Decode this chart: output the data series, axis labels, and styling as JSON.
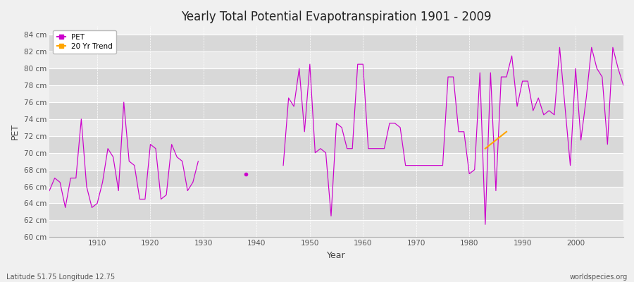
{
  "title": "Yearly Total Potential Evapotranspiration 1901 - 2009",
  "xlabel": "Year",
  "ylabel": "PET",
  "subtitle_left": "Latitude 51.75 Longitude 12.75",
  "subtitle_right": "worldspecies.org",
  "pet_color": "#cc00cc",
  "trend_color": "#FFA500",
  "bg_color": "#f0f0f0",
  "plot_bg_color": "#f0f0f0",
  "ylim": [
    60,
    85
  ],
  "ytick_labels": [
    "60 cm",
    "62 cm",
    "64 cm",
    "66 cm",
    "68 cm",
    "70 cm",
    "72 cm",
    "74 cm",
    "76 cm",
    "78 cm",
    "80 cm",
    "82 cm",
    "84 cm"
  ],
  "ytick_values": [
    60,
    62,
    64,
    66,
    68,
    70,
    72,
    74,
    76,
    78,
    80,
    82,
    84
  ],
  "years": [
    1901,
    1902,
    1903,
    1904,
    1905,
    1906,
    1907,
    1908,
    1909,
    1910,
    1911,
    1912,
    1913,
    1914,
    1915,
    1916,
    1917,
    1918,
    1919,
    1920,
    1921,
    1922,
    1923,
    1924,
    1925,
    1926,
    1927,
    1928,
    1929,
    1930,
    1931,
    1932,
    1933,
    1934,
    1935,
    1936,
    1937,
    1938,
    1939,
    1940,
    1941,
    1942,
    1943,
    1944,
    1945,
    1946,
    1947,
    1948,
    1949,
    1950,
    1951,
    1952,
    1953,
    1954,
    1955,
    1956,
    1957,
    1958,
    1959,
    1960,
    1961,
    1962,
    1963,
    1964,
    1965,
    1966,
    1967,
    1968,
    1969,
    1970,
    1971,
    1972,
    1973,
    1974,
    1975,
    1976,
    1977,
    1978,
    1979,
    1980,
    1981,
    1982,
    1983,
    1984,
    1985,
    1986,
    1987,
    1988,
    1989,
    1990,
    1991,
    1992,
    1993,
    1994,
    1995,
    1996,
    1997,
    1998,
    1999,
    2000,
    2001,
    2002,
    2003,
    2004,
    2005,
    2006,
    2007,
    2008,
    2009
  ],
  "pet_values": [
    65.5,
    67.0,
    66.5,
    63.5,
    67.0,
    67.0,
    74.0,
    66.0,
    63.5,
    64.0,
    66.5,
    70.5,
    69.5,
    65.5,
    76.0,
    69.0,
    68.5,
    64.5,
    64.5,
    71.0,
    70.5,
    64.5,
    65.0,
    71.0,
    69.5,
    69.0,
    65.5,
    66.5,
    69.0,
    null,
    null,
    null,
    null,
    null,
    null,
    null,
    null,
    67.5,
    null,
    null,
    null,
    null,
    null,
    null,
    68.5,
    76.5,
    75.5,
    80.0,
    72.5,
    80.5,
    70.0,
    70.5,
    70.0,
    62.5,
    73.5,
    73.0,
    70.5,
    70.5,
    80.5,
    80.5,
    70.5,
    70.5,
    70.5,
    70.5,
    73.5,
    73.5,
    73.0,
    68.5,
    68.5,
    68.5,
    68.5,
    68.5,
    68.5,
    68.5,
    68.5,
    79.0,
    79.0,
    72.5,
    72.5,
    67.5,
    68.0,
    79.5,
    61.5,
    79.5,
    65.5,
    79.0,
    79.0,
    81.5,
    75.5,
    78.5,
    78.5,
    75.0,
    76.5,
    74.5,
    75.0,
    74.5,
    82.5,
    75.5,
    68.5,
    80.0,
    71.5,
    76.5,
    82.5,
    80.0,
    79.0,
    71.0,
    82.5,
    80.0,
    78.0
  ],
  "trend_x": [
    1983,
    1984,
    1985,
    1986,
    1987
  ],
  "trend_y": [
    70.5,
    71.0,
    71.5,
    72.0,
    72.5
  ],
  "legend_pet_label": "PET",
  "legend_trend_label": "20 Yr Trend",
  "xticks": [
    1910,
    1920,
    1930,
    1940,
    1950,
    1960,
    1970,
    1980,
    1990,
    2000
  ]
}
